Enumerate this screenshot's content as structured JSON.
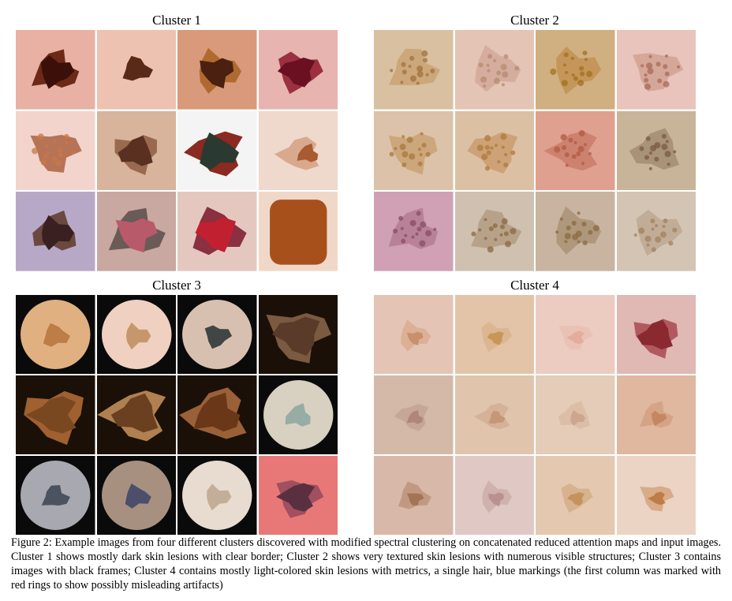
{
  "figure": {
    "clusters": [
      {
        "title": "Cluster 1",
        "images": [
          {
            "bg": "#e8b1a4",
            "lesion": "#3a1008",
            "rim": "#6b2a18",
            "shape": "blob"
          },
          {
            "bg": "#edc2b0",
            "lesion": "#5a2a18",
            "rim": "#8a4a30",
            "shape": "small"
          },
          {
            "bg": "#d89a7a",
            "lesion": "#4a2010",
            "rim": "#b06a30",
            "shape": "blob"
          },
          {
            "bg": "#e7b4b0",
            "lesion": "#6a1020",
            "rim": "#9a3040",
            "shape": "blob"
          },
          {
            "bg": "#f2d4cc",
            "lesion": "#c8784a",
            "rim": "#a85a38",
            "shape": "textured"
          },
          {
            "bg": "#d8b49c",
            "lesion": "#5a3020",
            "rim": "#9a6a50",
            "shape": "blob"
          },
          {
            "bg": "#f4f4f4",
            "lesion": "#2a3a30",
            "rim": "#8a2a20",
            "shape": "large"
          },
          {
            "bg": "#efd8cc",
            "lesion": "#a85a30",
            "rim": "#c88a60",
            "shape": "ring"
          },
          {
            "bg": "#b8a8c8",
            "lesion": "#3a2020",
            "rim": "#6a4a40",
            "shape": "blob"
          },
          {
            "bg": "#c8a8a0",
            "lesion": "#b85a6a",
            "rim": "#6a5a58",
            "shape": "large"
          },
          {
            "bg": "#e4c8c0",
            "lesion": "#c02030",
            "rim": "#8a3040",
            "shape": "large"
          },
          {
            "bg": "#f0d8c8",
            "lesion": "#a8501c",
            "rim": "#c07030",
            "shape": "square"
          }
        ]
      },
      {
        "title": "Cluster 2",
        "images": [
          {
            "bg": "#d8c0a0",
            "lesion": "#a07040",
            "rim": "#c8a070",
            "shape": "textured"
          },
          {
            "bg": "#e4c4b4",
            "lesion": "#b88a70",
            "rim": "#d0a898",
            "shape": "textured"
          },
          {
            "bg": "#d0b080",
            "lesion": "#a07020",
            "rim": "#c09050",
            "shape": "textured"
          },
          {
            "bg": "#e8c4bc",
            "lesion": "#a86a5a",
            "rim": "#d0a090",
            "shape": "textured"
          },
          {
            "bg": "#dcc2a8",
            "lesion": "#a8783a",
            "rim": "#c8a070",
            "shape": "textured"
          },
          {
            "bg": "#dcc0a4",
            "lesion": "#b0783a",
            "rim": "#c89a6a",
            "shape": "textured"
          },
          {
            "bg": "#e0a090",
            "lesion": "#b05a40",
            "rim": "#c87a68",
            "shape": "textured"
          },
          {
            "bg": "#c8b498",
            "lesion": "#7a5a40",
            "rim": "#a08a70",
            "shape": "textured"
          },
          {
            "bg": "#d0a0b4",
            "lesion": "#8a4a6a",
            "rim": "#b07a90",
            "shape": "textured"
          },
          {
            "bg": "#d0c0b0",
            "lesion": "#8a6a40",
            "rim": "#b09a80",
            "shape": "textured"
          },
          {
            "bg": "#c8b4a0",
            "lesion": "#8a6a40",
            "rim": "#a89070",
            "shape": "textured"
          },
          {
            "bg": "#d4c4b4",
            "lesion": "#a08060",
            "rim": "#bca890",
            "shape": "textured"
          }
        ]
      },
      {
        "title": "Cluster 3",
        "images": [
          {
            "bg": "#0a0a0a",
            "lesion": "#b87840",
            "rim": "#e0b080",
            "shape": "dermoscope"
          },
          {
            "bg": "#0a0a0a",
            "lesion": "#c09060",
            "rim": "#f0d0c0",
            "shape": "dermoscope"
          },
          {
            "bg": "#0a0a0a",
            "lesion": "#303838",
            "rim": "#d8c0b0",
            "shape": "dermoscope"
          },
          {
            "bg": "#1a1008",
            "lesion": "#5a3a28",
            "rim": "#7a5a40",
            "shape": "full"
          },
          {
            "bg": "#1a1008",
            "lesion": "#7a4820",
            "rim": "#a06030",
            "shape": "full"
          },
          {
            "bg": "#1a1008",
            "lesion": "#6a4020",
            "rim": "#b08050",
            "shape": "full"
          },
          {
            "bg": "#1a1008",
            "lesion": "#6a3818",
            "rim": "#9a6038",
            "shape": "full"
          },
          {
            "bg": "#0a0a0a",
            "lesion": "#90a8a0",
            "rim": "#d8d0c0",
            "shape": "dermoscope"
          },
          {
            "bg": "#0a0a0a",
            "lesion": "#404858",
            "rim": "#a8a8b0",
            "shape": "dermoscope"
          },
          {
            "bg": "#0a0a0a",
            "lesion": "#404868",
            "rim": "#a89080",
            "shape": "dermoscope"
          },
          {
            "bg": "#0a0a0a",
            "lesion": "#c0a890",
            "rim": "#e8dcd0",
            "shape": "dermoscope"
          },
          {
            "bg": "#e87878",
            "lesion": "#5a3040",
            "rim": "#a05060",
            "shape": "blob"
          }
        ]
      },
      {
        "title": "Cluster 4",
        "images": [
          {
            "bg": "#e4c4b4",
            "lesion": "#c08a60",
            "rim": "#d8a888",
            "shape": "faint"
          },
          {
            "bg": "#e4c4a8",
            "lesion": "#c0904a",
            "rim": "#d8b088",
            "shape": "faint"
          },
          {
            "bg": "#ecccc0",
            "lesion": "#e0a898",
            "rim": "#e8bcb0",
            "shape": "faint"
          },
          {
            "bg": "#e0b8b4",
            "lesion": "#8a2a30",
            "rim": "#b05a60",
            "shape": "blob"
          },
          {
            "bg": "#d4b8a8",
            "lesion": "#a88070",
            "rim": "#c0a090",
            "shape": "faint"
          },
          {
            "bg": "#e0c4ac",
            "lesion": "#c09070",
            "rim": "#d0aa90",
            "shape": "faint"
          },
          {
            "bg": "#e4ccb8",
            "lesion": "#c8a08a",
            "rim": "#d8b8a0",
            "shape": "faint"
          },
          {
            "bg": "#e0b8a0",
            "lesion": "#c08058",
            "rim": "#d09a7a",
            "shape": "faint"
          },
          {
            "bg": "#d8b8a8",
            "lesion": "#9a6a48",
            "rim": "#b88a70",
            "shape": "faint"
          },
          {
            "bg": "#e0c8c4",
            "lesion": "#b08a88",
            "rim": "#c8a8a4",
            "shape": "faint"
          },
          {
            "bg": "#e4c8b0",
            "lesion": "#c08a50",
            "rim": "#d0a880",
            "shape": "faint"
          },
          {
            "bg": "#ecd4c4",
            "lesion": "#b8703a",
            "rim": "#d09a70",
            "shape": "faint"
          }
        ]
      }
    ],
    "caption": "Figure 2: Example images from four different clusters discovered with modified spectral clustering on concatenated reduced attention maps and input images. Cluster 1 shows mostly dark skin lesions with clear border; Cluster 2 shows very textured skin lesions with numerous visible structures; Cluster 3 contains images with black frames; Cluster 4 contains mostly light-colored skin lesions with metrics, a single hair, blue markings (the first column was marked with red rings to show possibly misleading artifacts)"
  }
}
